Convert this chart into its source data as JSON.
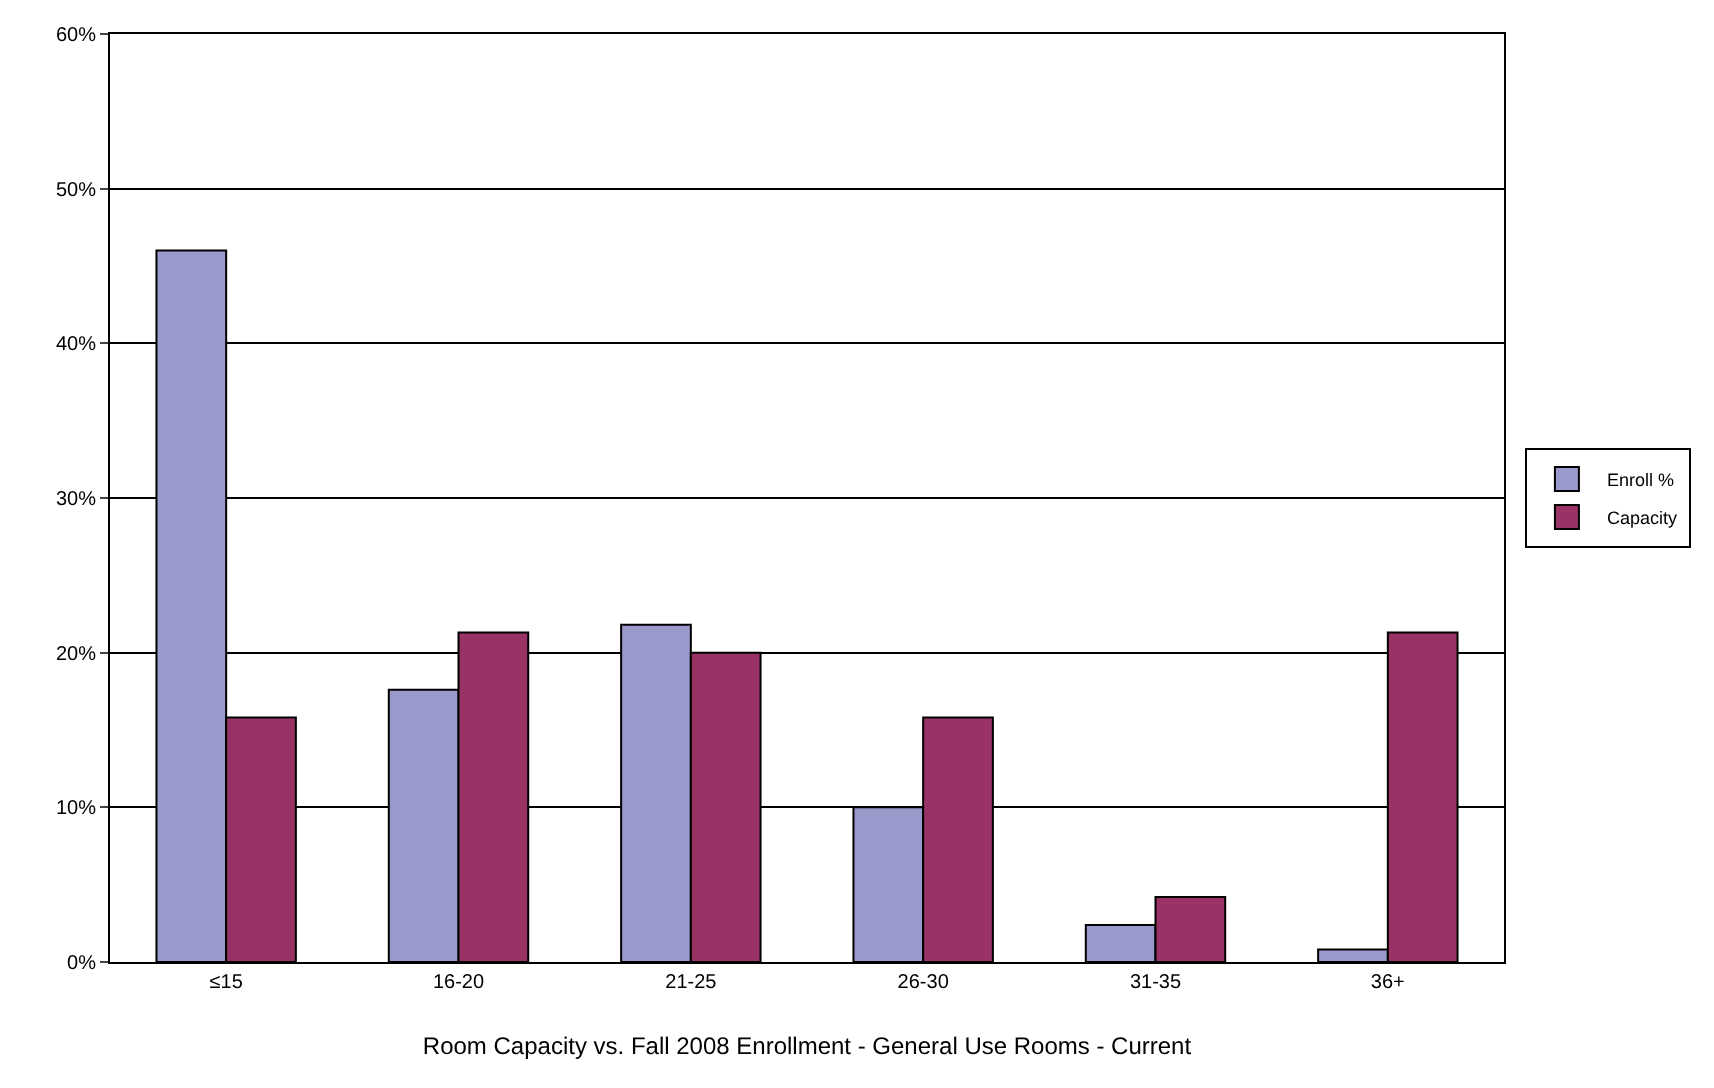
{
  "chart_data": {
    "type": "bar",
    "xlabel": "Room Capacity vs. Fall 2008 Enrollment - General Use Rooms - Current",
    "categories": [
      "≤15",
      "16-20",
      "21-25",
      "26-30",
      "31-35",
      "36+"
    ],
    "series": [
      {
        "name": "Enroll %",
        "color": "#9999cc",
        "values": [
          46.0,
          17.6,
          21.8,
          10.0,
          2.4,
          0.8
        ]
      },
      {
        "name": "Capacity",
        "color": "#993366",
        "values": [
          15.8,
          21.3,
          20.0,
          15.8,
          4.2,
          21.3
        ]
      }
    ],
    "ylim": [
      0,
      60
    ],
    "yticks": [
      {
        "value": 0,
        "label": "0%"
      },
      {
        "value": 10,
        "label": "10%"
      },
      {
        "value": 20,
        "label": "20%"
      },
      {
        "value": 30,
        "label": "30%"
      },
      {
        "value": 40,
        "label": "40%"
      },
      {
        "value": 50,
        "label": "50%"
      },
      {
        "value": 60,
        "label": "60%"
      }
    ],
    "grid": "y",
    "legend": "right"
  }
}
